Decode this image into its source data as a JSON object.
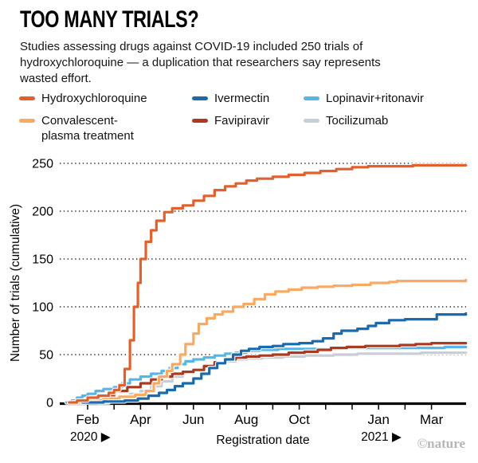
{
  "header": {
    "title": "TOO MANY TRIALS?",
    "subtitle": "Studies assessing drugs against COVID-19 included 250 trials of hydroxychloroquine — a duplication that researchers say represents wasted effort."
  },
  "legend": {
    "items": [
      {
        "label": "Hydroxychloroquine",
        "color": "#E2602B"
      },
      {
        "label": "Convalescent-\nplasma treatment",
        "color": "#F8A963"
      },
      {
        "label": "Ivermectin",
        "color": "#1A6AB0"
      },
      {
        "label": "Favipiravir",
        "color": "#AC3A1E"
      },
      {
        "label": "Lopinavir+ritonavir",
        "color": "#55B7E8"
      },
      {
        "label": "Tocilizumab",
        "color": "#C8CED6"
      }
    ]
  },
  "chart_data": {
    "type": "line",
    "step": true,
    "title": "TOO MANY TRIALS?",
    "xlabel": "Registration date",
    "ylabel": "Number of trials (cumulative)",
    "x_unit": "months, 0 = Jan 2020",
    "xlim": [
      0,
      15.3
    ],
    "ylim": [
      0,
      260
    ],
    "grid": "dotted horizontal",
    "legend_position": "top",
    "y_ticks": [
      0,
      50,
      100,
      150,
      200,
      250
    ],
    "x_ticks": [
      {
        "m": 1,
        "label": "Feb"
      },
      {
        "m": 2,
        "label": ""
      },
      {
        "m": 3,
        "label": "Apr"
      },
      {
        "m": 4,
        "label": ""
      },
      {
        "m": 5,
        "label": "Jun"
      },
      {
        "m": 6,
        "label": ""
      },
      {
        "m": 7,
        "label": "Aug"
      },
      {
        "m": 8,
        "label": ""
      },
      {
        "m": 9,
        "label": "Oct"
      },
      {
        "m": 10,
        "label": ""
      },
      {
        "m": 11,
        "label": ""
      },
      {
        "m": 12,
        "label": "Jan"
      },
      {
        "m": 13,
        "label": ""
      },
      {
        "m": 14,
        "label": "Mar"
      }
    ],
    "year_markers": [
      {
        "m": 1,
        "label": "2020 ▶"
      },
      {
        "m": 12,
        "label": "2021 ▶"
      }
    ],
    "series": [
      {
        "name": "Tocilizumab",
        "color": "#C8CED6",
        "points": [
          [
            1.4,
            0
          ],
          [
            1.8,
            3
          ],
          [
            2.2,
            6
          ],
          [
            2.6,
            9
          ],
          [
            3,
            12
          ],
          [
            3.4,
            17
          ],
          [
            3.8,
            22
          ],
          [
            4.2,
            27
          ],
          [
            4.6,
            31
          ],
          [
            5,
            35
          ],
          [
            5.4,
            38
          ],
          [
            5.8,
            41
          ],
          [
            6.2,
            43
          ],
          [
            6.6,
            45
          ],
          [
            7,
            46
          ],
          [
            7.6,
            47
          ],
          [
            8.4,
            48
          ],
          [
            9.2,
            49
          ],
          [
            10.3,
            50
          ],
          [
            11.2,
            51
          ],
          [
            12.6,
            51
          ],
          [
            13.6,
            52
          ],
          [
            15.3,
            52
          ]
        ]
      },
      {
        "name": "Lopinavir+ritonavir",
        "color": "#55B7E8",
        "points": [
          [
            0.2,
            0
          ],
          [
            0.4,
            2
          ],
          [
            0.6,
            5
          ],
          [
            0.8,
            7
          ],
          [
            1,
            9
          ],
          [
            1.3,
            12
          ],
          [
            1.6,
            14
          ],
          [
            2,
            16
          ],
          [
            2.3,
            20
          ],
          [
            2.6,
            24
          ],
          [
            3,
            27
          ],
          [
            3.4,
            30
          ],
          [
            3.8,
            33
          ],
          [
            4.1,
            36
          ],
          [
            4.4,
            40
          ],
          [
            4.7,
            43
          ],
          [
            5,
            45
          ],
          [
            5.4,
            47
          ],
          [
            5.8,
            49
          ],
          [
            6.2,
            51
          ],
          [
            6.6,
            52
          ],
          [
            7,
            54
          ],
          [
            7.5,
            55
          ],
          [
            8.2,
            56
          ],
          [
            9.5,
            56
          ],
          [
            10.5,
            57
          ],
          [
            13,
            57
          ],
          [
            14.5,
            58
          ],
          [
            15.3,
            58
          ]
        ]
      },
      {
        "name": "Favipiravir",
        "color": "#AC3A1E",
        "points": [
          [
            0.5,
            0
          ],
          [
            0.9,
            3
          ],
          [
            1.4,
            7
          ],
          [
            2,
            12
          ],
          [
            2.5,
            16
          ],
          [
            3,
            20
          ],
          [
            3.4,
            24
          ],
          [
            3.8,
            27
          ],
          [
            4.2,
            30
          ],
          [
            4.6,
            32
          ],
          [
            5,
            34
          ],
          [
            5.4,
            38
          ],
          [
            5.8,
            42
          ],
          [
            6.2,
            45
          ],
          [
            6.6,
            47
          ],
          [
            7,
            48
          ],
          [
            7.5,
            49
          ],
          [
            8,
            50
          ],
          [
            8.6,
            52
          ],
          [
            9.2,
            53
          ],
          [
            9.7,
            55
          ],
          [
            10.2,
            57
          ],
          [
            10.8,
            58
          ],
          [
            11.5,
            59
          ],
          [
            12.2,
            59
          ],
          [
            12.8,
            60
          ],
          [
            13.4,
            61
          ],
          [
            14,
            62
          ],
          [
            15.3,
            62
          ]
        ]
      },
      {
        "name": "Convalescent-plasma treatment",
        "color": "#F8A963",
        "points": [
          [
            0.4,
            0
          ],
          [
            1,
            2
          ],
          [
            1.6,
            4
          ],
          [
            2.2,
            6
          ],
          [
            2.8,
            8
          ],
          [
            3.2,
            12
          ],
          [
            3.5,
            20
          ],
          [
            3.7,
            27
          ],
          [
            4,
            33
          ],
          [
            4.2,
            40
          ],
          [
            4.5,
            50
          ],
          [
            4.7,
            61
          ],
          [
            5,
            72
          ],
          [
            5.2,
            82
          ],
          [
            5.5,
            88
          ],
          [
            5.8,
            92
          ],
          [
            6.1,
            95
          ],
          [
            6.5,
            100
          ],
          [
            6.9,
            103
          ],
          [
            7.3,
            108
          ],
          [
            7.7,
            113
          ],
          [
            8.1,
            116
          ],
          [
            8.6,
            118
          ],
          [
            9.1,
            120
          ],
          [
            9.7,
            121
          ],
          [
            10.3,
            122
          ],
          [
            11,
            123
          ],
          [
            11.7,
            125
          ],
          [
            12.4,
            126
          ],
          [
            12.7,
            127
          ],
          [
            14,
            127
          ],
          [
            15.3,
            128
          ]
        ]
      },
      {
        "name": "Ivermectin",
        "color": "#1A6AB0",
        "points": [
          [
            0.8,
            0
          ],
          [
            1.6,
            1
          ],
          [
            2.4,
            2
          ],
          [
            2.9,
            4
          ],
          [
            3.3,
            7
          ],
          [
            3.7,
            10
          ],
          [
            4,
            13
          ],
          [
            4.3,
            17
          ],
          [
            4.6,
            20
          ],
          [
            5,
            25
          ],
          [
            5.3,
            30
          ],
          [
            5.6,
            36
          ],
          [
            5.9,
            41
          ],
          [
            6.2,
            45
          ],
          [
            6.5,
            50
          ],
          [
            6.8,
            54
          ],
          [
            7.1,
            56
          ],
          [
            7.5,
            58
          ],
          [
            8,
            59
          ],
          [
            8.4,
            61
          ],
          [
            9,
            62
          ],
          [
            9.5,
            64
          ],
          [
            9.9,
            67
          ],
          [
            10.3,
            72
          ],
          [
            10.6,
            75
          ],
          [
            11.2,
            77
          ],
          [
            11.6,
            80
          ],
          [
            11.9,
            83
          ],
          [
            12.4,
            86
          ],
          [
            13,
            87
          ],
          [
            13.6,
            87
          ],
          [
            14.2,
            92
          ],
          [
            15.3,
            93
          ]
        ]
      },
      {
        "name": "Hydroxychloroquine",
        "color": "#E2602B",
        "points": [
          [
            0.3,
            0
          ],
          [
            0.6,
            2
          ],
          [
            1,
            5
          ],
          [
            1.4,
            7
          ],
          [
            1.8,
            10
          ],
          [
            2,
            13
          ],
          [
            2.2,
            18
          ],
          [
            2.4,
            35
          ],
          [
            2.6,
            65
          ],
          [
            2.75,
            100
          ],
          [
            2.9,
            125
          ],
          [
            3,
            150
          ],
          [
            3.2,
            168
          ],
          [
            3.4,
            180
          ],
          [
            3.6,
            190
          ],
          [
            3.9,
            199
          ],
          [
            4.2,
            203
          ],
          [
            4.6,
            206
          ],
          [
            5,
            211
          ],
          [
            5.4,
            216
          ],
          [
            5.8,
            222
          ],
          [
            6.2,
            226
          ],
          [
            6.6,
            229
          ],
          [
            7,
            232
          ],
          [
            7.4,
            234
          ],
          [
            8,
            236
          ],
          [
            8.6,
            238
          ],
          [
            9.2,
            240
          ],
          [
            9.8,
            242
          ],
          [
            10.4,
            244
          ],
          [
            11,
            246
          ],
          [
            11.6,
            247
          ],
          [
            12.5,
            247
          ],
          [
            13.3,
            248
          ],
          [
            15.3,
            248
          ]
        ]
      }
    ]
  },
  "footer": {
    "credit": "©nature"
  }
}
